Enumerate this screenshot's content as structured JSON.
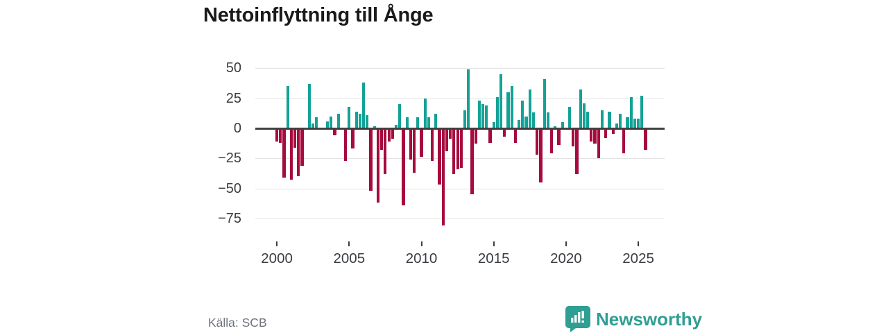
{
  "title": "Nettoinflyttning till Ånge",
  "source": "Källa: SCB",
  "logo": {
    "text": "Newsworthy",
    "icon": "newsworthy-speech-bubble-barchart-icon"
  },
  "colors": {
    "positive": "#14a296",
    "negative": "#a60b3e",
    "brand": "#2f9e93",
    "grid": "#e3e3e3",
    "zero_axis": "#404040",
    "axis_text": "#3a3d42",
    "title_text": "#1a1a1a",
    "source_text": "#6f737b"
  },
  "chart_data": {
    "type": "bar",
    "title": "Nettoinflyttning till Ånge",
    "xlabel": "",
    "ylabel": "",
    "grid": true,
    "ylim": [
      -85,
      55
    ],
    "yticks": [
      50,
      25,
      0,
      -25,
      -50,
      -75
    ],
    "xticks": [
      2000,
      2005,
      2010,
      2015,
      2020,
      2025
    ],
    "quarters_per_tick": 20,
    "x": [
      "2000Q1",
      "2000Q2",
      "2000Q3",
      "2000Q4",
      "2001Q1",
      "2001Q2",
      "2001Q3",
      "2001Q4",
      "2002Q1",
      "2002Q2",
      "2002Q3",
      "2002Q4",
      "2003Q1",
      "2003Q2",
      "2003Q3",
      "2003Q4",
      "2004Q1",
      "2004Q2",
      "2004Q3",
      "2004Q4",
      "2005Q1",
      "2005Q2",
      "2005Q3",
      "2005Q4",
      "2006Q1",
      "2006Q2",
      "2006Q3",
      "2006Q4",
      "2007Q1",
      "2007Q2",
      "2007Q3",
      "2007Q4",
      "2008Q1",
      "2008Q2",
      "2008Q3",
      "2008Q4",
      "2009Q1",
      "2009Q2",
      "2009Q3",
      "2009Q4",
      "2010Q1",
      "2010Q2",
      "2010Q3",
      "2010Q4",
      "2011Q1",
      "2011Q2",
      "2011Q3",
      "2011Q4",
      "2012Q1",
      "2012Q2",
      "2012Q3",
      "2012Q4",
      "2013Q1",
      "2013Q2",
      "2013Q3",
      "2013Q4",
      "2014Q1",
      "2014Q2",
      "2014Q3",
      "2014Q4",
      "2015Q1",
      "2015Q2",
      "2015Q3",
      "2015Q4",
      "2016Q1",
      "2016Q2",
      "2016Q3",
      "2016Q4",
      "2017Q1",
      "2017Q2",
      "2017Q3",
      "2017Q4",
      "2018Q1",
      "2018Q2",
      "2018Q3",
      "2018Q4",
      "2019Q1",
      "2019Q2",
      "2019Q3",
      "2019Q4",
      "2020Q1",
      "2020Q2",
      "2020Q3",
      "2020Q4",
      "2021Q1",
      "2021Q2",
      "2021Q3",
      "2021Q4",
      "2022Q1",
      "2022Q2",
      "2022Q3",
      "2022Q4",
      "2023Q1",
      "2023Q2",
      "2023Q3",
      "2023Q4",
      "2024Q1",
      "2024Q2",
      "2024Q3",
      "2024Q4",
      "2025Q1",
      "2025Q2",
      "2025Q3"
    ],
    "values": [
      -10,
      -11,
      -40,
      35,
      -42,
      -15,
      -39,
      -30,
      0,
      37,
      4,
      9,
      0,
      0,
      6,
      10,
      -5,
      12,
      0,
      -26,
      18,
      -16,
      14,
      12,
      38,
      11,
      -51,
      2,
      -61,
      -17,
      -37,
      -10,
      -8,
      3,
      20,
      -63,
      9,
      -25,
      -36,
      9,
      -23,
      25,
      9,
      -26,
      12,
      -46,
      -80,
      -18,
      -8,
      -37,
      -33,
      -32,
      15,
      49,
      -54,
      -12,
      23,
      20,
      19,
      -11,
      5,
      26,
      45,
      -6,
      30,
      35,
      -11,
      7,
      23,
      10,
      32,
      13,
      -21,
      -44,
      41,
      13,
      -20,
      2,
      -13,
      5,
      0,
      18,
      -14,
      -37,
      32,
      21,
      14,
      -10,
      -12,
      -24,
      15,
      -7,
      14,
      -4,
      4,
      12,
      -20,
      9,
      26,
      8,
      8,
      27,
      -17
    ],
    "legend": null,
    "legend_position": "none"
  }
}
